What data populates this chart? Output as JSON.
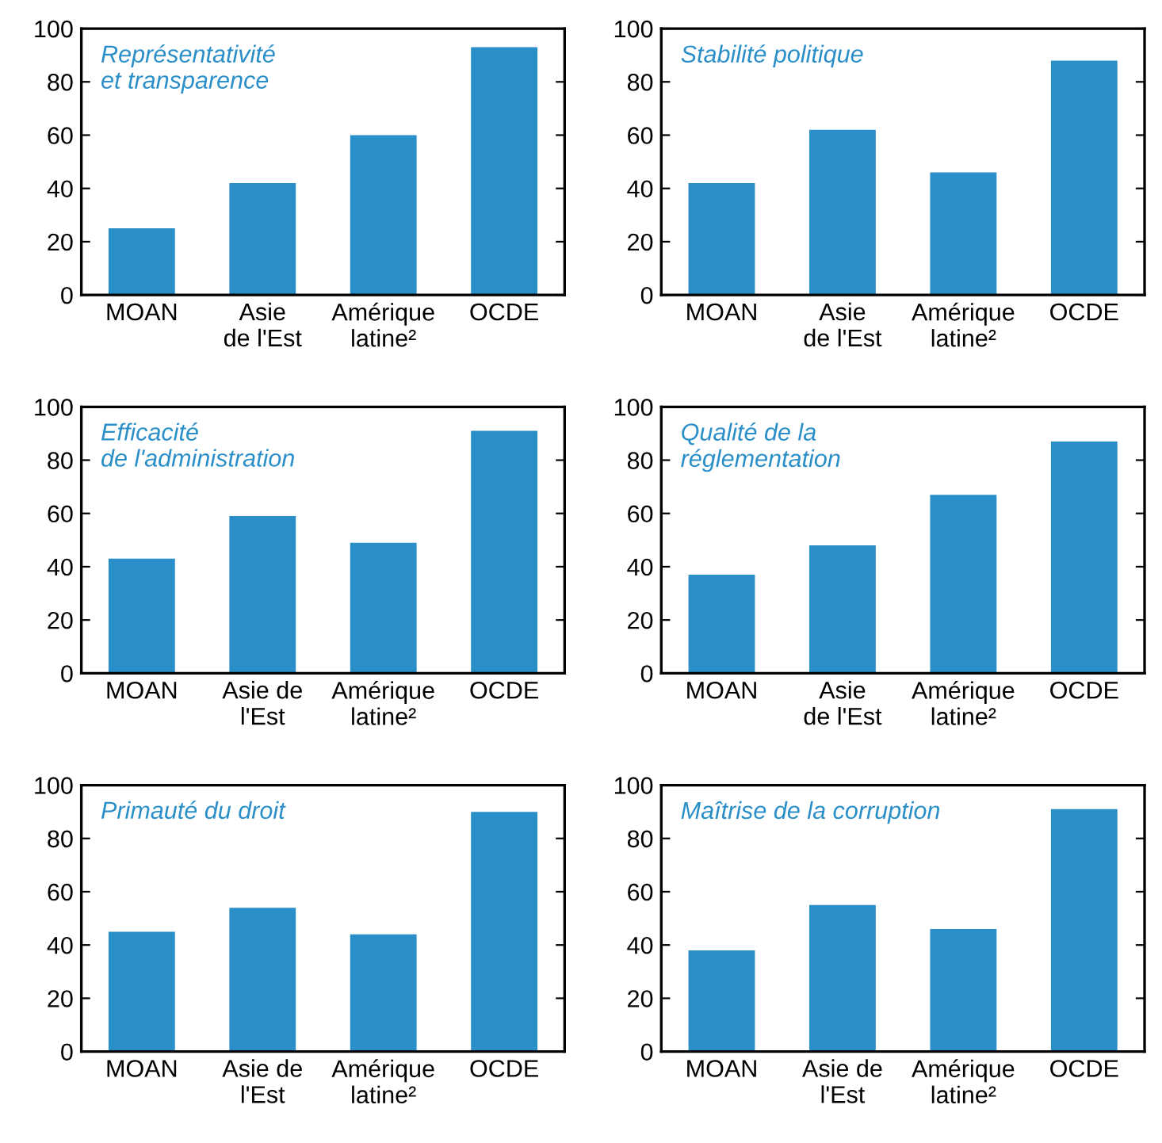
{
  "chart_data": [
    {
      "type": "bar",
      "title": "Représentativité\net transparence",
      "categories": [
        "MOAN",
        "Asie\nde l'Est",
        "Amérique\nlatine²",
        "OCDE"
      ],
      "values": [
        25,
        42,
        60,
        93
      ],
      "color": "#2a8fc8",
      "ylim": [
        0,
        100
      ],
      "yticks": [
        0,
        20,
        40,
        60,
        80,
        100
      ],
      "grid": false
    },
    {
      "type": "bar",
      "title": "Stabilité politique",
      "categories": [
        "MOAN",
        "Asie\nde l'Est",
        "Amérique\nlatine²",
        "OCDE"
      ],
      "values": [
        42,
        62,
        46,
        88
      ],
      "color": "#2a8fc8",
      "ylim": [
        0,
        100
      ],
      "yticks": [
        0,
        20,
        40,
        60,
        80,
        100
      ],
      "grid": false
    },
    {
      "type": "bar",
      "title": "Efficacité\nde l'administration",
      "categories": [
        "MOAN",
        "Asie de\nl'Est",
        "Amérique\nlatine²",
        "OCDE"
      ],
      "values": [
        43,
        59,
        49,
        91
      ],
      "color": "#2a8fc8",
      "ylim": [
        0,
        100
      ],
      "yticks": [
        0,
        20,
        40,
        60,
        80,
        100
      ],
      "grid": false
    },
    {
      "type": "bar",
      "title": "Qualité de la\nréglementation",
      "categories": [
        "MOAN",
        "Asie\nde l'Est",
        "Amérique\nlatine²",
        "OCDE"
      ],
      "values": [
        37,
        48,
        67,
        87
      ],
      "color": "#2a8fc8",
      "ylim": [
        0,
        100
      ],
      "yticks": [
        0,
        20,
        40,
        60,
        80,
        100
      ],
      "grid": false
    },
    {
      "type": "bar",
      "title": "Primauté du droit",
      "categories": [
        "MOAN",
        "Asie de\nl'Est",
        "Amérique\nlatine²",
        "OCDE"
      ],
      "values": [
        45,
        54,
        44,
        90
      ],
      "color": "#2a8fc8",
      "ylim": [
        0,
        100
      ],
      "yticks": [
        0,
        20,
        40,
        60,
        80,
        100
      ],
      "grid": false
    },
    {
      "type": "bar",
      "title": "Maîtrise de la corruption",
      "categories": [
        "MOAN",
        "Asie de\nl'Est",
        "Amérique\nlatine²",
        "OCDE"
      ],
      "values": [
        38,
        55,
        46,
        91
      ],
      "color": "#2a8fc8",
      "ylim": [
        0,
        100
      ],
      "yticks": [
        0,
        20,
        40,
        60,
        80,
        100
      ],
      "grid": false
    }
  ]
}
